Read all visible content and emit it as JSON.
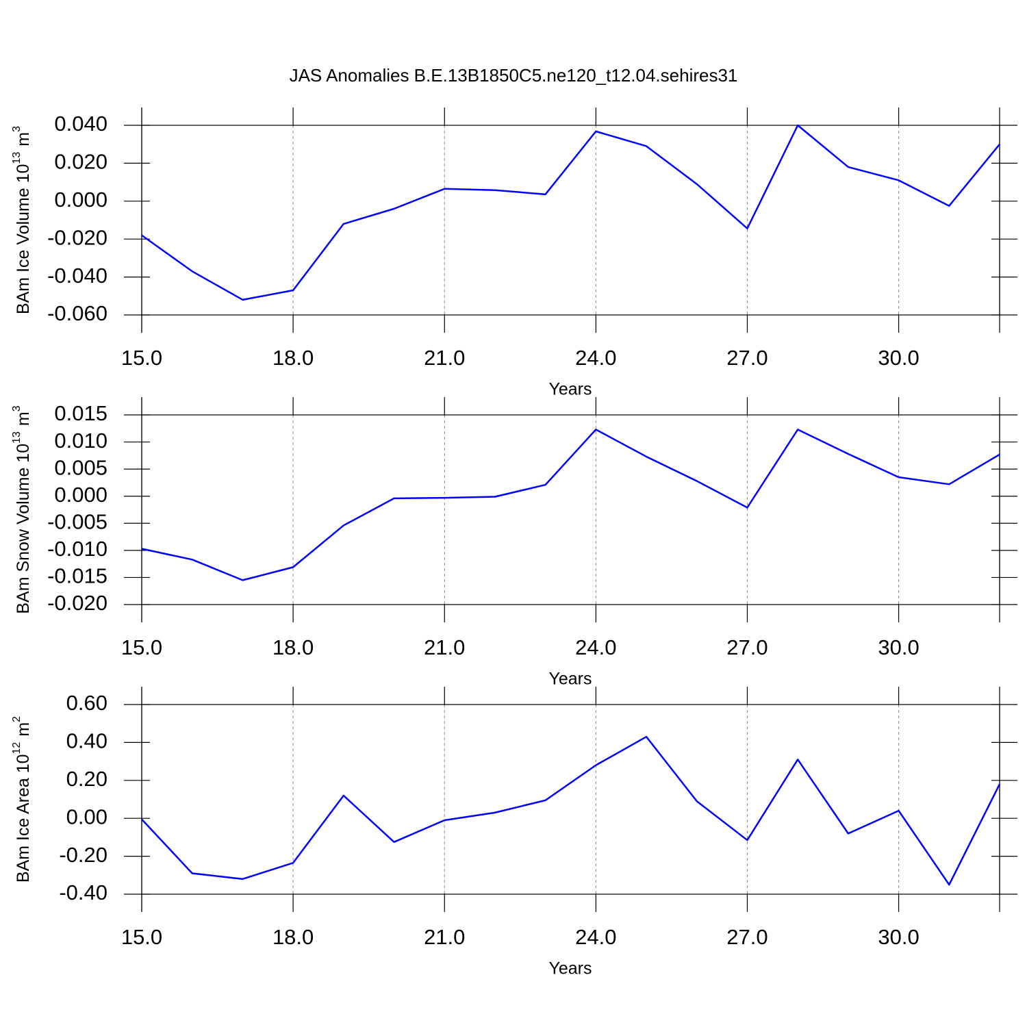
{
  "title": "JAS Anomalies B.E.13B1850C5.ne120_t12.04.sehires31",
  "chart_data": [
    {
      "type": "line",
      "ylabel": [
        "BAm Ice Volume 10",
        "13",
        "m",
        "3"
      ],
      "xlabel": "Years",
      "x": [
        15,
        16,
        17,
        18,
        19,
        20,
        21,
        22,
        23,
        24,
        25,
        26,
        27,
        28,
        29,
        30,
        31,
        32
      ],
      "series": [
        {
          "color": "#0000ff",
          "values": [
            -0.018,
            -0.037,
            -0.052,
            -0.047,
            -0.012,
            -0.004,
            0.0065,
            0.0058,
            0.0036,
            0.0368,
            0.029,
            0.009,
            -0.0144,
            0.04,
            0.018,
            0.011,
            -0.0025,
            0.03
          ]
        }
      ],
      "xlim": [
        15,
        32
      ],
      "ylim": [
        -0.06,
        0.04
      ],
      "xticks": [
        {
          "value": 15,
          "label": "15.0"
        },
        {
          "value": 18,
          "label": "18.0"
        },
        {
          "value": 21,
          "label": "21.0"
        },
        {
          "value": 24,
          "label": "24.0"
        },
        {
          "value": 27,
          "label": "27.0"
        },
        {
          "value": 30,
          "label": "30.0"
        }
      ],
      "yticks": [
        {
          "value": -0.06,
          "label": "-0.060"
        },
        {
          "value": -0.04,
          "label": "-0.040"
        },
        {
          "value": -0.02,
          "label": "-0.020"
        },
        {
          "value": 0,
          "label": "0.000"
        },
        {
          "value": 0.02,
          "label": "0.020"
        },
        {
          "value": 0.04,
          "label": "0.040"
        }
      ],
      "grid": "x"
    },
    {
      "type": "line",
      "ylabel": [
        "BAm Snow Volume 10",
        "13",
        "m",
        "3"
      ],
      "xlabel": "Years",
      "x": [
        15,
        16,
        17,
        18,
        19,
        20,
        21,
        22,
        23,
        24,
        25,
        26,
        27,
        28,
        29,
        30,
        31,
        32
      ],
      "series": [
        {
          "color": "#0000ff",
          "values": [
            -0.0097,
            -0.0117,
            -0.0155,
            -0.0131,
            -0.0054,
            -0.0004,
            -0.0003,
            -0.0001,
            0.0021,
            0.0123,
            0.0073,
            0.0028,
            -0.0021,
            0.0123,
            0.0078,
            0.0035,
            0.0022,
            0.0077
          ]
        }
      ],
      "xlim": [
        15,
        32
      ],
      "ylim": [
        -0.02,
        0.015
      ],
      "xticks": [
        {
          "value": 15,
          "label": "15.0"
        },
        {
          "value": 18,
          "label": "18.0"
        },
        {
          "value": 21,
          "label": "21.0"
        },
        {
          "value": 24,
          "label": "24.0"
        },
        {
          "value": 27,
          "label": "27.0"
        },
        {
          "value": 30,
          "label": "30.0"
        }
      ],
      "yticks": [
        {
          "value": -0.02,
          "label": "-0.020"
        },
        {
          "value": -0.015,
          "label": "-0.015"
        },
        {
          "value": -0.01,
          "label": "-0.010"
        },
        {
          "value": -0.005,
          "label": "-0.005"
        },
        {
          "value": 0,
          "label": "0.000"
        },
        {
          "value": 0.005,
          "label": "0.005"
        },
        {
          "value": 0.01,
          "label": "0.010"
        },
        {
          "value": 0.015,
          "label": "0.015"
        }
      ],
      "grid": "x"
    },
    {
      "type": "line",
      "ylabel": [
        "BAm Ice Area 10",
        "12",
        "m",
        "2"
      ],
      "xlabel": "Years",
      "x": [
        15,
        16,
        17,
        18,
        19,
        20,
        21,
        22,
        23,
        24,
        25,
        26,
        27,
        28,
        29,
        30,
        31,
        32
      ],
      "series": [
        {
          "color": "#0000ff",
          "values": [
            -0.005,
            -0.29,
            -0.32,
            -0.235,
            0.12,
            -0.125,
            -0.01,
            0.03,
            0.095,
            0.28,
            0.43,
            0.09,
            -0.115,
            0.31,
            -0.08,
            0.04,
            -0.35,
            0.18
          ]
        }
      ],
      "xlim": [
        15,
        32
      ],
      "ylim": [
        -0.4,
        0.6
      ],
      "xticks": [
        {
          "value": 15,
          "label": "15.0"
        },
        {
          "value": 18,
          "label": "18.0"
        },
        {
          "value": 21,
          "label": "21.0"
        },
        {
          "value": 24,
          "label": "24.0"
        },
        {
          "value": 27,
          "label": "27.0"
        },
        {
          "value": 30,
          "label": "30.0"
        }
      ],
      "yticks": [
        {
          "value": -0.4,
          "label": "-0.40"
        },
        {
          "value": -0.2,
          "label": "-0.20"
        },
        {
          "value": 0,
          "label": "0.00"
        },
        {
          "value": 0.2,
          "label": "0.20"
        },
        {
          "value": 0.4,
          "label": "0.40"
        },
        {
          "value": 0.6,
          "label": "0.60"
        }
      ],
      "grid": "x"
    }
  ]
}
